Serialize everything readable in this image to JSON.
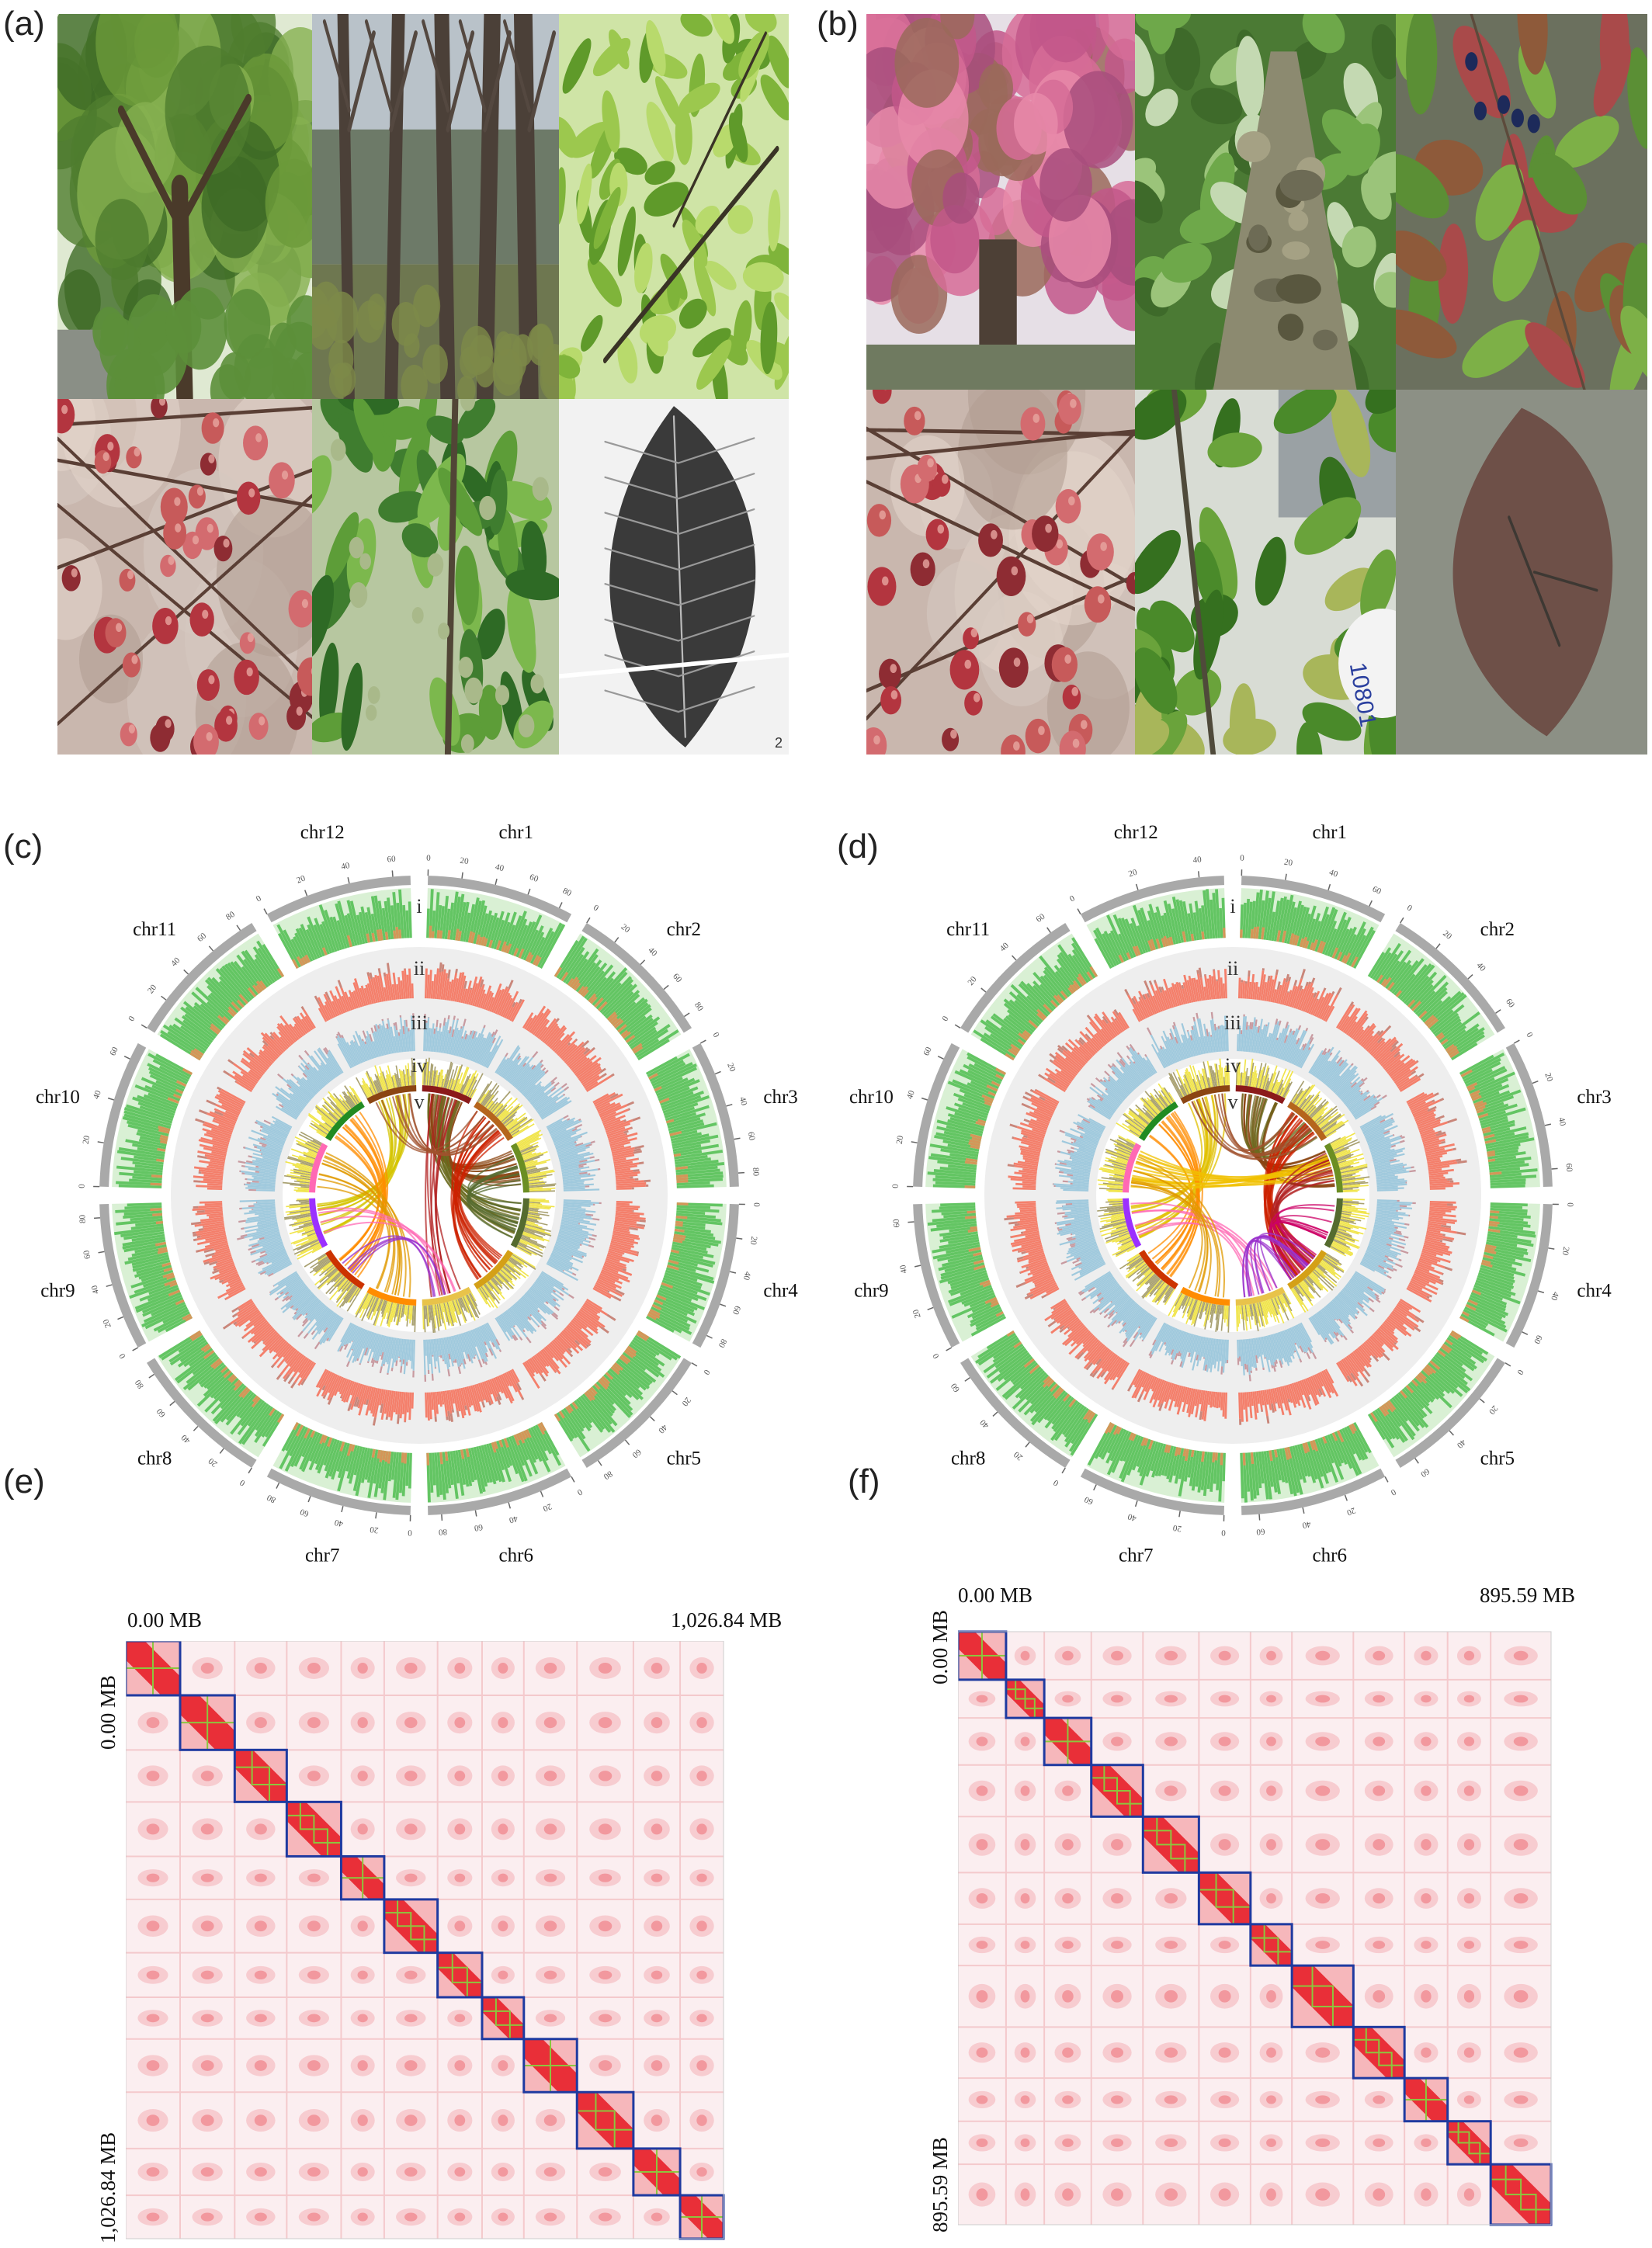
{
  "figure": {
    "panels": {
      "a": "(a)",
      "b": "(b)",
      "c": "(c)",
      "d": "(d)",
      "e": "(e)",
      "f": "(f)"
    },
    "photos_a": [
      {
        "name": "photo-a-whole-tree",
        "scene": "tree"
      },
      {
        "name": "photo-a-trunks",
        "scene": "trunks"
      },
      {
        "name": "photo-a-leaf-canopy",
        "scene": "canopy"
      },
      {
        "name": "photo-a-red-flowers",
        "scene": "flowers"
      },
      {
        "name": "photo-a-fruiting-branch",
        "scene": "branch"
      },
      {
        "name": "photo-a-fossil-leaf-bw",
        "scene": "fossil-bw"
      }
    ],
    "photos_b": [
      {
        "name": "photo-b-autumn-tree",
        "scene": "autumn"
      },
      {
        "name": "photo-b-trunk-upview",
        "scene": "trunkup"
      },
      {
        "name": "photo-b-leafy-shoot",
        "scene": "shoot"
      },
      {
        "name": "photo-b-red-flowers",
        "scene": "flowers"
      },
      {
        "name": "photo-b-flowering-shoot",
        "scene": "branch2"
      },
      {
        "name": "photo-b-fossil-leaf",
        "scene": "fossil"
      }
    ],
    "photo_a_corner_mark": "2",
    "photo_b_label_tag": "10801",
    "circos_c": {
      "chromosomes": [
        {
          "name": "chr1",
          "ticks": [
            "0",
            "20",
            "40",
            "60",
            "80"
          ]
        },
        {
          "name": "chr2",
          "ticks": [
            "0",
            "20",
            "40",
            "60",
            "80"
          ]
        },
        {
          "name": "chr3",
          "ticks": [
            "0",
            "20",
            "40",
            "60",
            "80"
          ]
        },
        {
          "name": "chr4",
          "ticks": [
            "0",
            "20",
            "40",
            "60",
            "80"
          ]
        },
        {
          "name": "chr5",
          "ticks": [
            "0",
            "20",
            "40",
            "60",
            "80"
          ]
        },
        {
          "name": "chr6",
          "ticks": [
            "0",
            "20",
            "40",
            "60",
            "80"
          ]
        },
        {
          "name": "chr7",
          "ticks": [
            "0",
            "20",
            "40",
            "60",
            "80"
          ]
        },
        {
          "name": "chr8",
          "ticks": [
            "0",
            "20",
            "40",
            "60",
            "80"
          ]
        },
        {
          "name": "chr9",
          "ticks": [
            "0",
            "20",
            "40",
            "60",
            "80"
          ]
        },
        {
          "name": "chr10",
          "ticks": [
            "0",
            "20",
            "40",
            "60"
          ]
        },
        {
          "name": "chr11",
          "ticks": [
            "0",
            "20",
            "40",
            "60",
            "80"
          ]
        },
        {
          "name": "chr12",
          "ticks": [
            "0",
            "20",
            "40",
            "60"
          ]
        }
      ],
      "track_labels": [
        "i",
        "ii",
        "iii",
        "iv",
        "v"
      ]
    },
    "circos_d": {
      "chromosomes": [
        {
          "name": "chr1",
          "ticks": [
            "0",
            "20",
            "40",
            "60"
          ]
        },
        {
          "name": "chr2",
          "ticks": [
            "0",
            "20",
            "40",
            "60"
          ]
        },
        {
          "name": "chr3",
          "ticks": [
            "0",
            "20",
            "40",
            "60"
          ]
        },
        {
          "name": "chr4",
          "ticks": [
            "0",
            "20",
            "40",
            "60"
          ]
        },
        {
          "name": "chr5",
          "ticks": [
            "0",
            "20",
            "40",
            "60"
          ]
        },
        {
          "name": "chr6",
          "ticks": [
            "0",
            "20",
            "40",
            "60"
          ]
        },
        {
          "name": "chr7",
          "ticks": [
            "0",
            "20",
            "40",
            "60"
          ]
        },
        {
          "name": "chr8",
          "ticks": [
            "0",
            "20",
            "40",
            "60"
          ]
        },
        {
          "name": "chr9",
          "ticks": [
            "0",
            "20",
            "40",
            "60"
          ]
        },
        {
          "name": "chr10",
          "ticks": [
            "0",
            "20",
            "40",
            "60"
          ]
        },
        {
          "name": "chr11",
          "ticks": [
            "0",
            "20",
            "40",
            "60"
          ]
        },
        {
          "name": "chr12",
          "ticks": [
            "0",
            "20",
            "40"
          ]
        }
      ],
      "track_labels": [
        "i",
        "ii",
        "iii",
        "iv",
        "v"
      ]
    },
    "hic_e": {
      "start_label": "0.00 MB",
      "end_label": "1,026.84 MB",
      "chromosome_count": 12
    },
    "hic_f": {
      "start_label": "0.00 MB",
      "end_label": "895.59 MB",
      "chromosome_count": 12
    },
    "colors": {
      "green_track": "#63c563",
      "salmon_track": "#f47f6b",
      "blue_track": "#9fc9dd",
      "yellow_track": "#f0e44a",
      "hic_red": "#e8202a",
      "hic_box_blue": "#1f3aa0",
      "hic_box_green": "#8cc63e"
    }
  }
}
